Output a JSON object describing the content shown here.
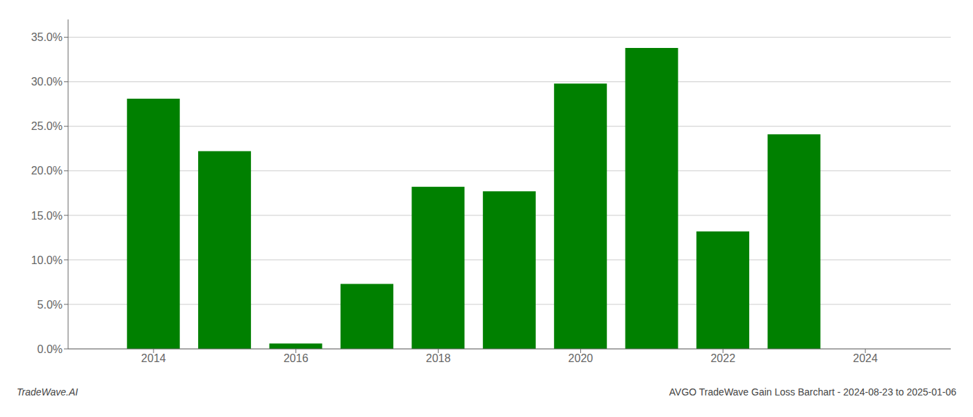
{
  "chart_data": {
    "type": "bar",
    "x": [
      2014,
      2015,
      2016,
      2017,
      2018,
      2019,
      2020,
      2021,
      2022,
      2023
    ],
    "values": [
      0.281,
      0.222,
      0.006,
      0.073,
      0.182,
      0.177,
      0.298,
      0.338,
      0.132,
      0.241
    ],
    "color": "#008000",
    "xlim": [
      2012.8,
      2025.2
    ],
    "xticks": [
      2014,
      2016,
      2018,
      2020,
      2022,
      2024
    ],
    "ylim": [
      0.0,
      0.37
    ],
    "yticks": [
      {
        "value": 0.0,
        "label": "0.0%"
      },
      {
        "value": 0.05,
        "label": "5.0%"
      },
      {
        "value": 0.1,
        "label": "10.0%"
      },
      {
        "value": 0.15,
        "label": "15.0%"
      },
      {
        "value": 0.2,
        "label": "20.0%"
      },
      {
        "value": 0.25,
        "label": "25.0%"
      },
      {
        "value": 0.3,
        "label": "30.0%"
      },
      {
        "value": 0.35,
        "label": "35.0%"
      }
    ],
    "grid": true,
    "annotations": [
      "TradeWave.AI",
      "AVGO TradeWave Gain Loss Barchart - 2024-08-23 to 2025-01-06"
    ]
  }
}
